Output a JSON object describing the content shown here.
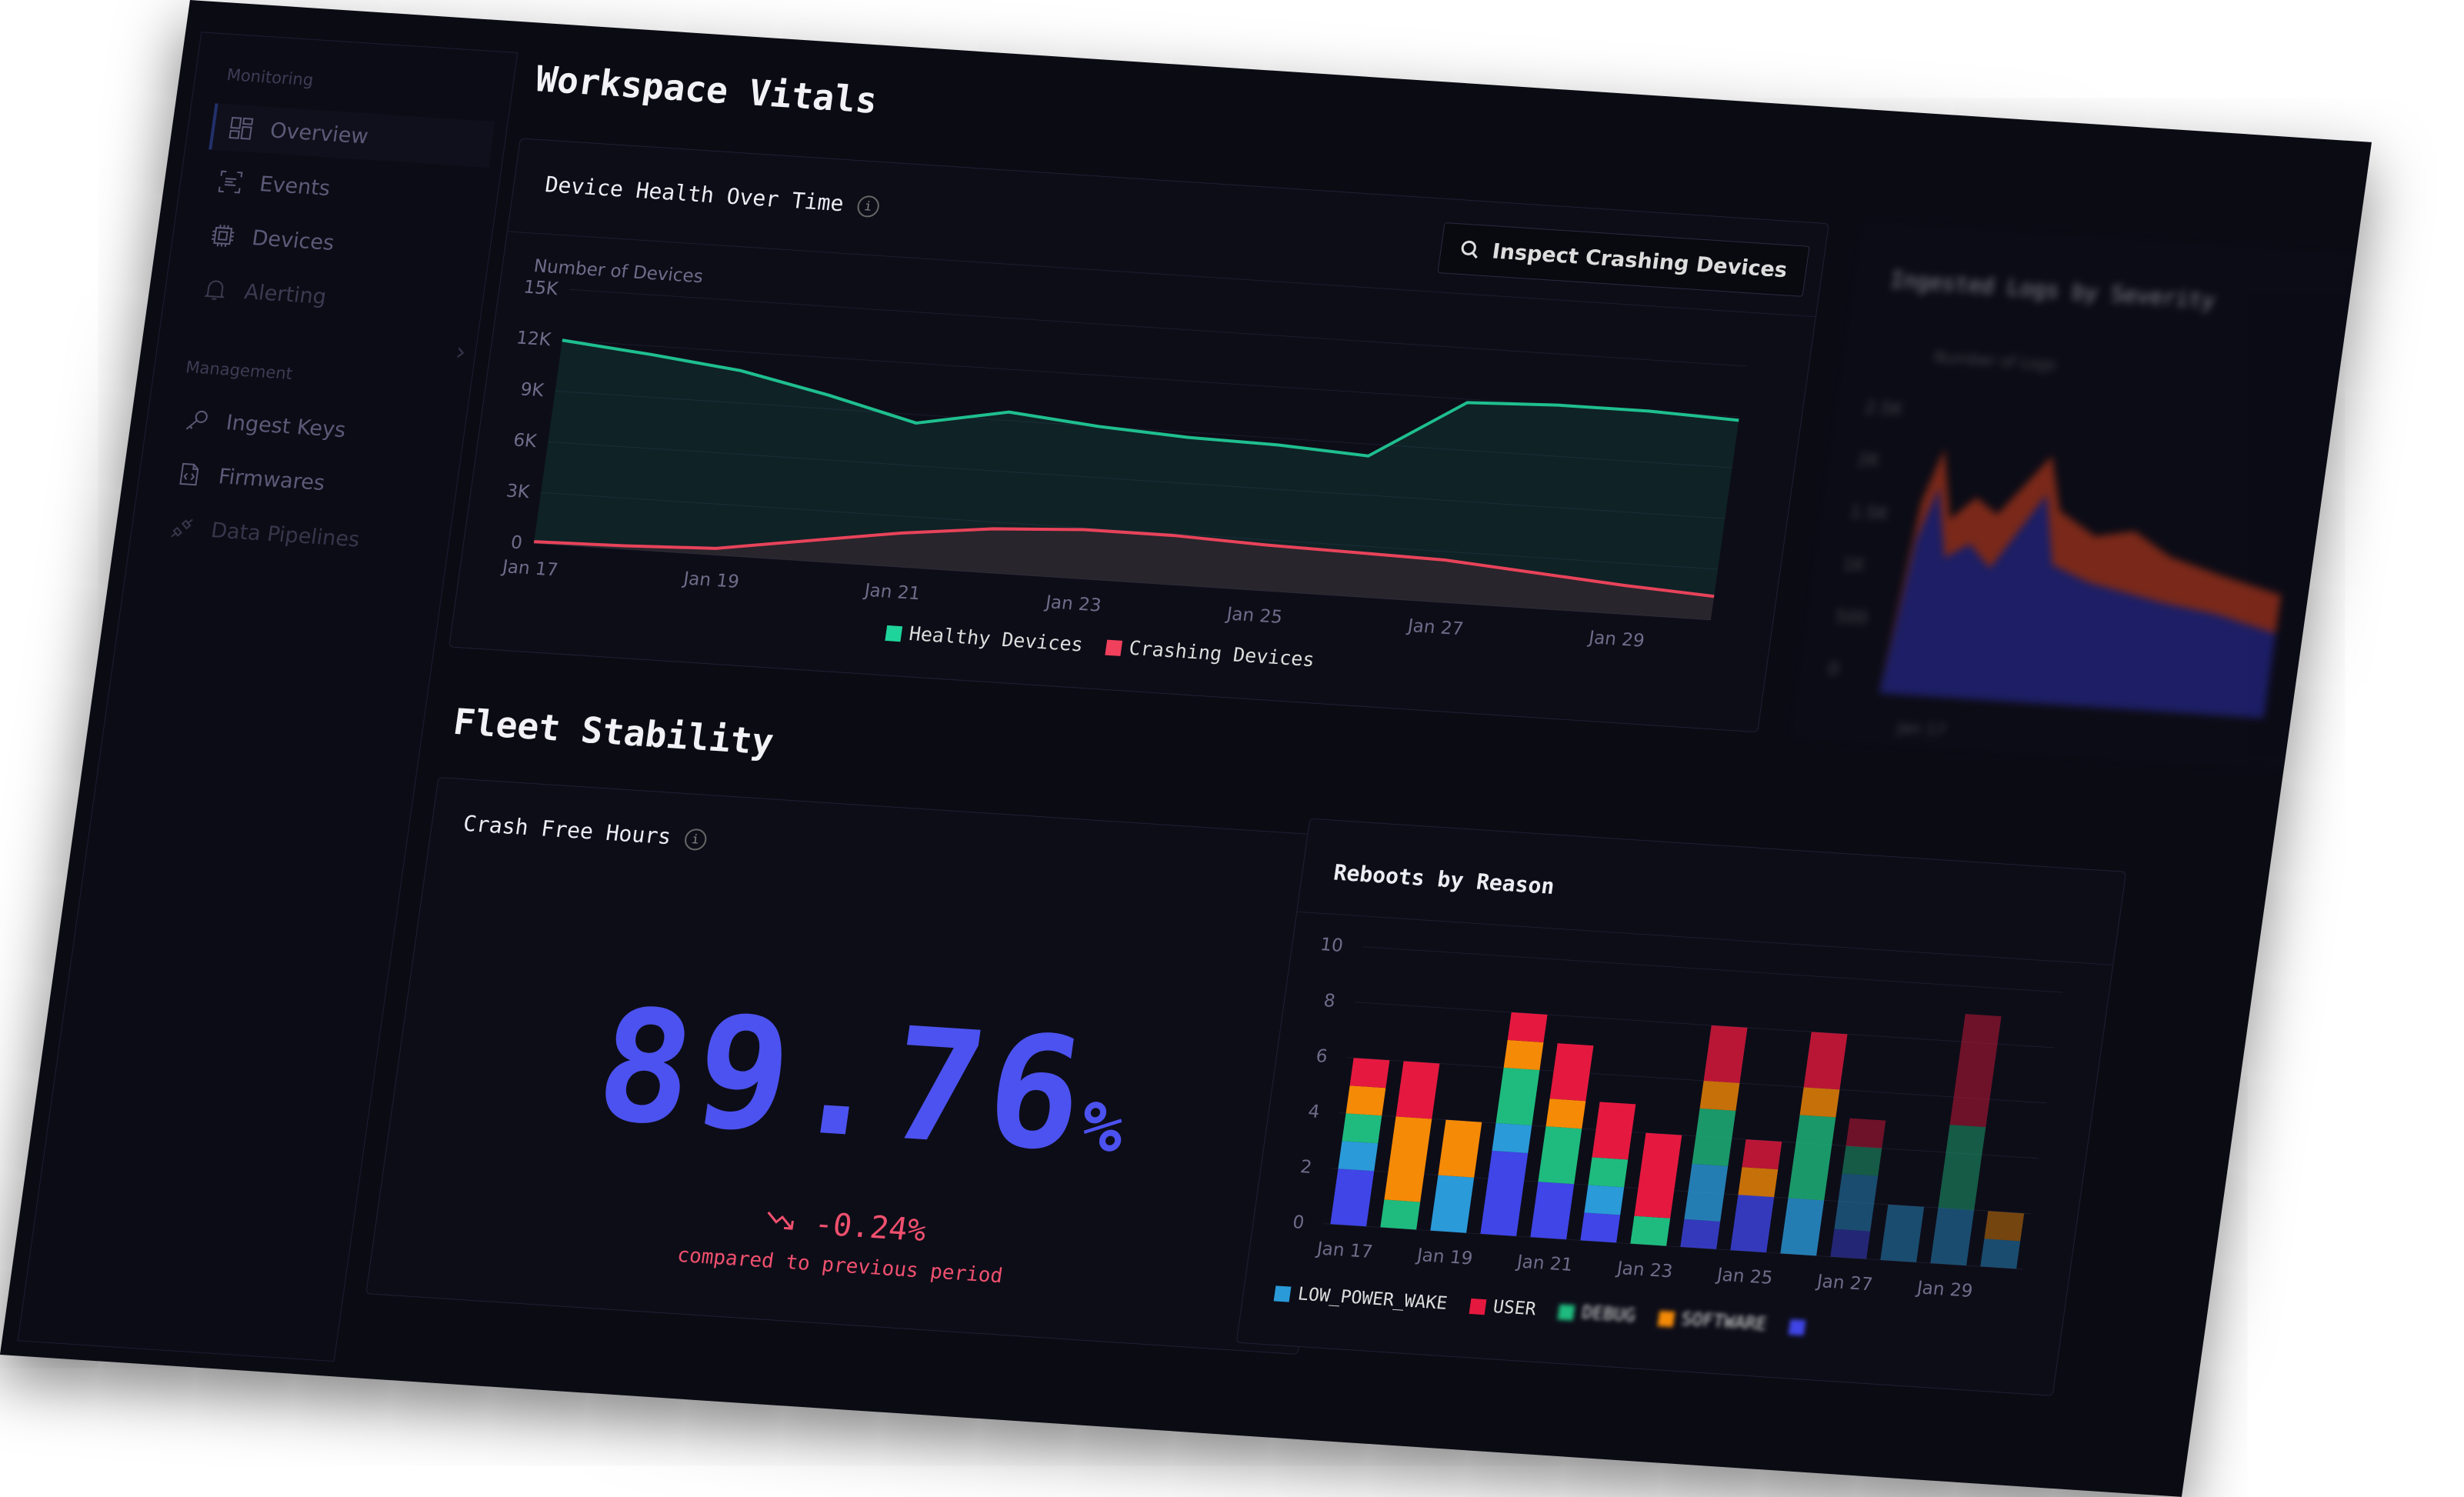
{
  "sidebar": {
    "sections": [
      {
        "label": "Monitoring",
        "items": [
          {
            "label": "Overview",
            "icon": "grid-icon",
            "active": true
          },
          {
            "label": "Events",
            "icon": "events-icon"
          },
          {
            "label": "Devices",
            "icon": "chip-icon"
          },
          {
            "label": "Alerting",
            "icon": "bell-icon"
          }
        ]
      },
      {
        "label": "Management",
        "items": [
          {
            "label": "Ingest Keys",
            "icon": "key-icon"
          },
          {
            "label": "Firmwares",
            "icon": "file-code-icon"
          },
          {
            "label": "Data Pipelines",
            "icon": "plug-icon"
          }
        ]
      }
    ]
  },
  "main": {
    "section1_title": "Workspace Vitals",
    "section2_title": "Fleet Stability",
    "device_health": {
      "title": "Device Health Over Time",
      "button_label": "Inspect Crashing Devices"
    },
    "ingested_logs": {
      "title": "Ingested Logs by Severity",
      "ylabel": "Number of Logs",
      "yticks": [
        "2.5K",
        "2K",
        "1.5K",
        "1K",
        "500",
        "0"
      ],
      "xticks": [
        "Jan 17"
      ]
    },
    "crash_free": {
      "title": "Crash Free Hours",
      "value": "89.76",
      "unit": "%",
      "delta": "-0.24%",
      "delta_caption": "compared to previous period",
      "value_color": "#4c52ef",
      "delta_color": "#f0506e"
    },
    "reboots": {
      "title": "Reboots by Reason"
    }
  },
  "chart_data": [
    {
      "type": "area",
      "ylabel": "Number of Devices",
      "ylim": [
        0,
        15000
      ],
      "yticks": [
        "0",
        "3K",
        "6K",
        "9K",
        "12K",
        "15K"
      ],
      "x": [
        "Jan 17",
        "Jan 18",
        "Jan 19",
        "Jan 20",
        "Jan 21",
        "Jan 22",
        "Jan 23",
        "Jan 24",
        "Jan 25",
        "Jan 26",
        "Jan 27",
        "Jan 28",
        "Jan 29",
        "Jan 30"
      ],
      "xticks": [
        "Jan 17",
        "Jan 19",
        "Jan 21",
        "Jan 23",
        "Jan 25",
        "Jan 27",
        "Jan 29"
      ],
      "grid": true,
      "legend": "bottom",
      "series": [
        {
          "name": "Healthy Devices",
          "color": "#1fbf8f",
          "values": [
            12000,
            11500,
            10900,
            9800,
            8500,
            9500,
            9000,
            8700,
            8600,
            8300,
            11800,
            12000,
            12000,
            11800
          ]
        },
        {
          "name": "Crashing Devices",
          "color": "#e8435a",
          "values": [
            100,
            200,
            400,
            1200,
            2000,
            2600,
            2900,
            2900,
            2700,
            2600,
            2500,
            2100,
            1700,
            1400
          ]
        }
      ]
    },
    {
      "type": "bar",
      "stacked": true,
      "ylim": [
        0,
        10
      ],
      "yticks": [
        "0",
        "2",
        "4",
        "6",
        "8",
        "10"
      ],
      "categories": [
        "Jan 17",
        "Jan 18",
        "Jan 19",
        "Jan 20",
        "Jan 21",
        "Jan 22",
        "Jan 23",
        "Jan 24",
        "Jan 25",
        "Jan 26",
        "Jan 27",
        "Jan 28",
        "Jan 29",
        "Jan 30"
      ],
      "xticks": [
        "Jan 17",
        "Jan 19",
        "Jan 21",
        "Jan 23",
        "Jan 25",
        "Jan 27",
        "Jan 29"
      ],
      "legend": "bottom",
      "series": [
        {
          "name": "",
          "color": "#3f45e6",
          "values": [
            2,
            0,
            0,
            3,
            2,
            1,
            0,
            1,
            2,
            0,
            1,
            0,
            0,
            0
          ]
        },
        {
          "name": "LOW_POWER_WAKE",
          "color": "#2a9ad9",
          "values": [
            1,
            0,
            2,
            1,
            0,
            1,
            0,
            2,
            0,
            2,
            2,
            2,
            2,
            1
          ]
        },
        {
          "name": "DEBUG",
          "color": "#1fbb7e",
          "values": [
            1,
            1,
            0,
            2,
            2,
            1,
            1,
            2,
            0,
            3,
            1,
            0,
            3,
            0
          ]
        },
        {
          "name": "SOFTWARE",
          "color": "#f58a07",
          "values": [
            1,
            3,
            2,
            1,
            1,
            0,
            0,
            1,
            1,
            1,
            0,
            0,
            0,
            1
          ]
        },
        {
          "name": "USER",
          "color": "#e5193f",
          "values": [
            1,
            2,
            0,
            1,
            2,
            2,
            3,
            2,
            1,
            2,
            1,
            0,
            4,
            0
          ]
        }
      ]
    }
  ]
}
